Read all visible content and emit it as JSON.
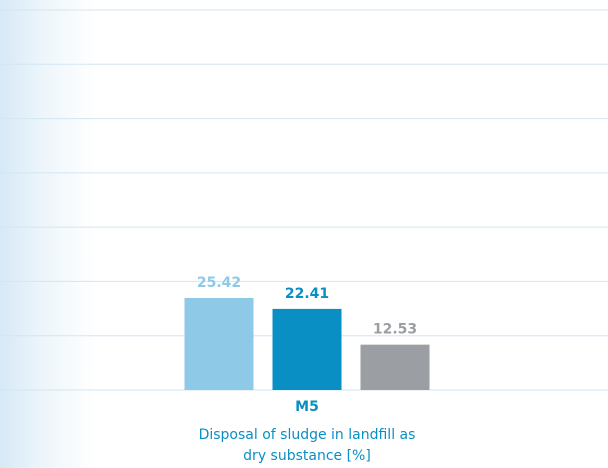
{
  "chart_data": {
    "type": "bar",
    "categories": [
      "M5"
    ],
    "axis_label": "Disposal of sludge in landfill as dry substance [%]",
    "series": [
      {
        "color": "#8ec9e8",
        "values": [
          25.42
        ]
      },
      {
        "color": "#0a8fc4",
        "values": [
          22.41
        ]
      },
      {
        "color": "#9b9ea3",
        "values": [
          12.53
        ]
      }
    ],
    "ylim": [
      0,
      105
    ],
    "yticks": [
      0,
      15,
      30,
      45,
      60,
      75,
      90,
      105
    ],
    "grid": true
  }
}
